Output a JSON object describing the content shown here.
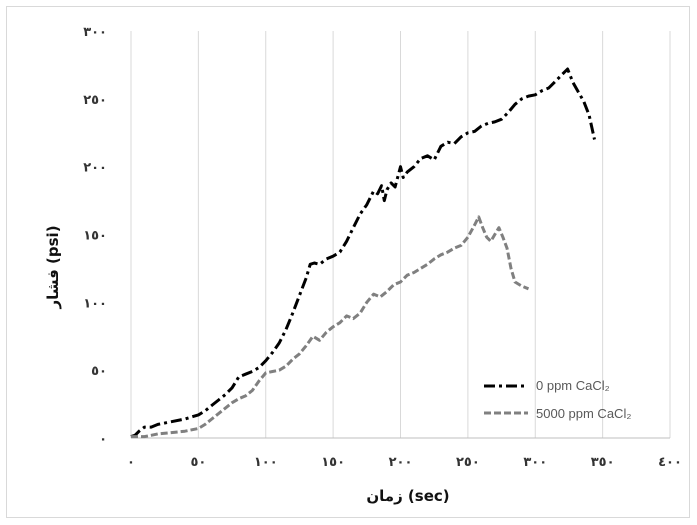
{
  "chart_data": {
    "type": "line",
    "title": "",
    "xlabel": "زمان (sec)",
    "ylabel": "فشار (psi)",
    "xlim": [
      0,
      400
    ],
    "ylim": [
      0,
      300
    ],
    "x_ticks": [
      0,
      50,
      100,
      150,
      200,
      250,
      300,
      350,
      400
    ],
    "y_ticks": [
      0,
      50,
      100,
      150,
      200,
      250,
      300
    ],
    "x_tick_labels": [
      "٠",
      "٥٠",
      "١٠٠",
      "١٥٠",
      "٢٠٠",
      "٢٥٠",
      "٣٠٠",
      "٣٥٠",
      "٤٠٠"
    ],
    "y_tick_labels": [
      "٠",
      "٥٠",
      "١٠٠",
      "١٥٠",
      "٢٠٠",
      "٢٥٠",
      "٣٠٠"
    ],
    "grid": "vertical",
    "legend_position": "bottom-right",
    "series": [
      {
        "name": "0 ppm CaCl₂",
        "color": "#000000",
        "dash": "dash-dot",
        "x": [
          0,
          3,
          6,
          10,
          15,
          20,
          30,
          40,
          50,
          55,
          60,
          65,
          70,
          75,
          80,
          85,
          90,
          95,
          100,
          105,
          110,
          115,
          120,
          125,
          130,
          133,
          136,
          140,
          145,
          150,
          155,
          160,
          165,
          170,
          175,
          180,
          183,
          186,
          188,
          190,
          193,
          196,
          200,
          202,
          205,
          210,
          215,
          220,
          225,
          230,
          235,
          240,
          245,
          250,
          255,
          260,
          265,
          270,
          275,
          280,
          285,
          290,
          295,
          300,
          305,
          310,
          315,
          320,
          324,
          328,
          332,
          336,
          340,
          344
        ],
        "y": [
          1,
          2,
          5,
          8,
          8,
          10,
          12,
          14,
          17,
          20,
          24,
          28,
          32,
          37,
          45,
          47,
          49,
          52,
          57,
          63,
          70,
          80,
          92,
          105,
          118,
          128,
          129,
          128,
          132,
          134,
          137,
          145,
          155,
          165,
          172,
          182,
          180,
          186,
          175,
          183,
          188,
          185,
          200,
          192,
          196,
          200,
          206,
          208,
          205,
          215,
          218,
          217,
          222,
          225,
          226,
          230,
          232,
          233,
          235,
          240,
          246,
          250,
          252,
          253,
          256,
          258,
          263,
          268,
          272,
          262,
          255,
          248,
          238,
          220
        ]
      },
      {
        "name": "5000 ppm CaCl₂",
        "color": "#808080",
        "dash": "dashed",
        "x": [
          0,
          5,
          10,
          15,
          20,
          30,
          40,
          50,
          55,
          60,
          65,
          70,
          75,
          80,
          85,
          90,
          95,
          100,
          105,
          110,
          115,
          120,
          125,
          130,
          135,
          140,
          145,
          150,
          155,
          160,
          165,
          170,
          175,
          180,
          185,
          190,
          195,
          200,
          205,
          210,
          215,
          220,
          225,
          230,
          235,
          240,
          245,
          250,
          255,
          258,
          261,
          264,
          267,
          270,
          273,
          276,
          279,
          282,
          285,
          290,
          295
        ],
        "y": [
          1,
          1,
          1,
          2,
          3,
          4,
          5,
          7,
          10,
          14,
          18,
          22,
          26,
          29,
          31,
          35,
          42,
          48,
          49,
          50,
          53,
          58,
          62,
          68,
          75,
          72,
          78,
          82,
          85,
          90,
          88,
          92,
          100,
          106,
          104,
          108,
          113,
          115,
          120,
          122,
          125,
          128,
          132,
          135,
          137,
          140,
          142,
          148,
          157,
          163,
          155,
          148,
          145,
          150,
          155,
          148,
          140,
          125,
          115,
          112,
          110
        ]
      }
    ]
  }
}
